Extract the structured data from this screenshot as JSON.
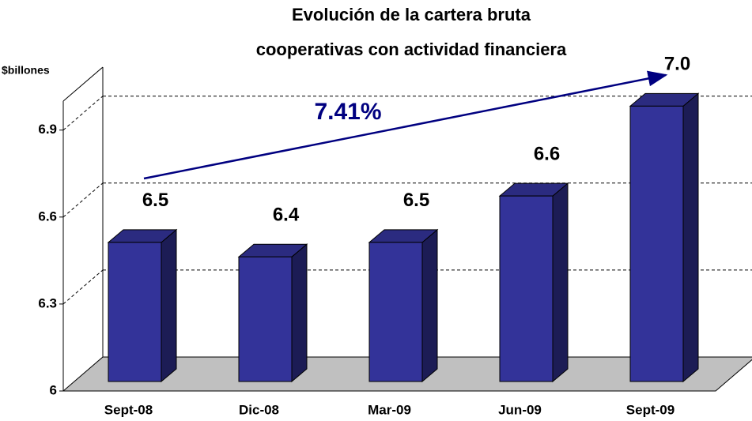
{
  "chart_data": {
    "type": "bar3d",
    "title": [
      "Evolución de la cartera bruta",
      "cooperativas con actividad financiera"
    ],
    "y_label": "$billones",
    "annotation": "7.41%",
    "categories": [
      "Sept-08",
      "Dic-08",
      "Mar-09",
      "Jun-09",
      "Sept-09"
    ],
    "values": [
      6.48,
      6.43,
      6.48,
      6.64,
      6.95
    ],
    "value_labels": [
      "6.5",
      "6.4",
      "6.5",
      "6.6",
      "7.0"
    ],
    "color": "#333399",
    "ylim": [
      6,
      7
    ],
    "yticks": [
      6,
      6.3,
      6.6,
      6.9
    ],
    "grid": true
  }
}
